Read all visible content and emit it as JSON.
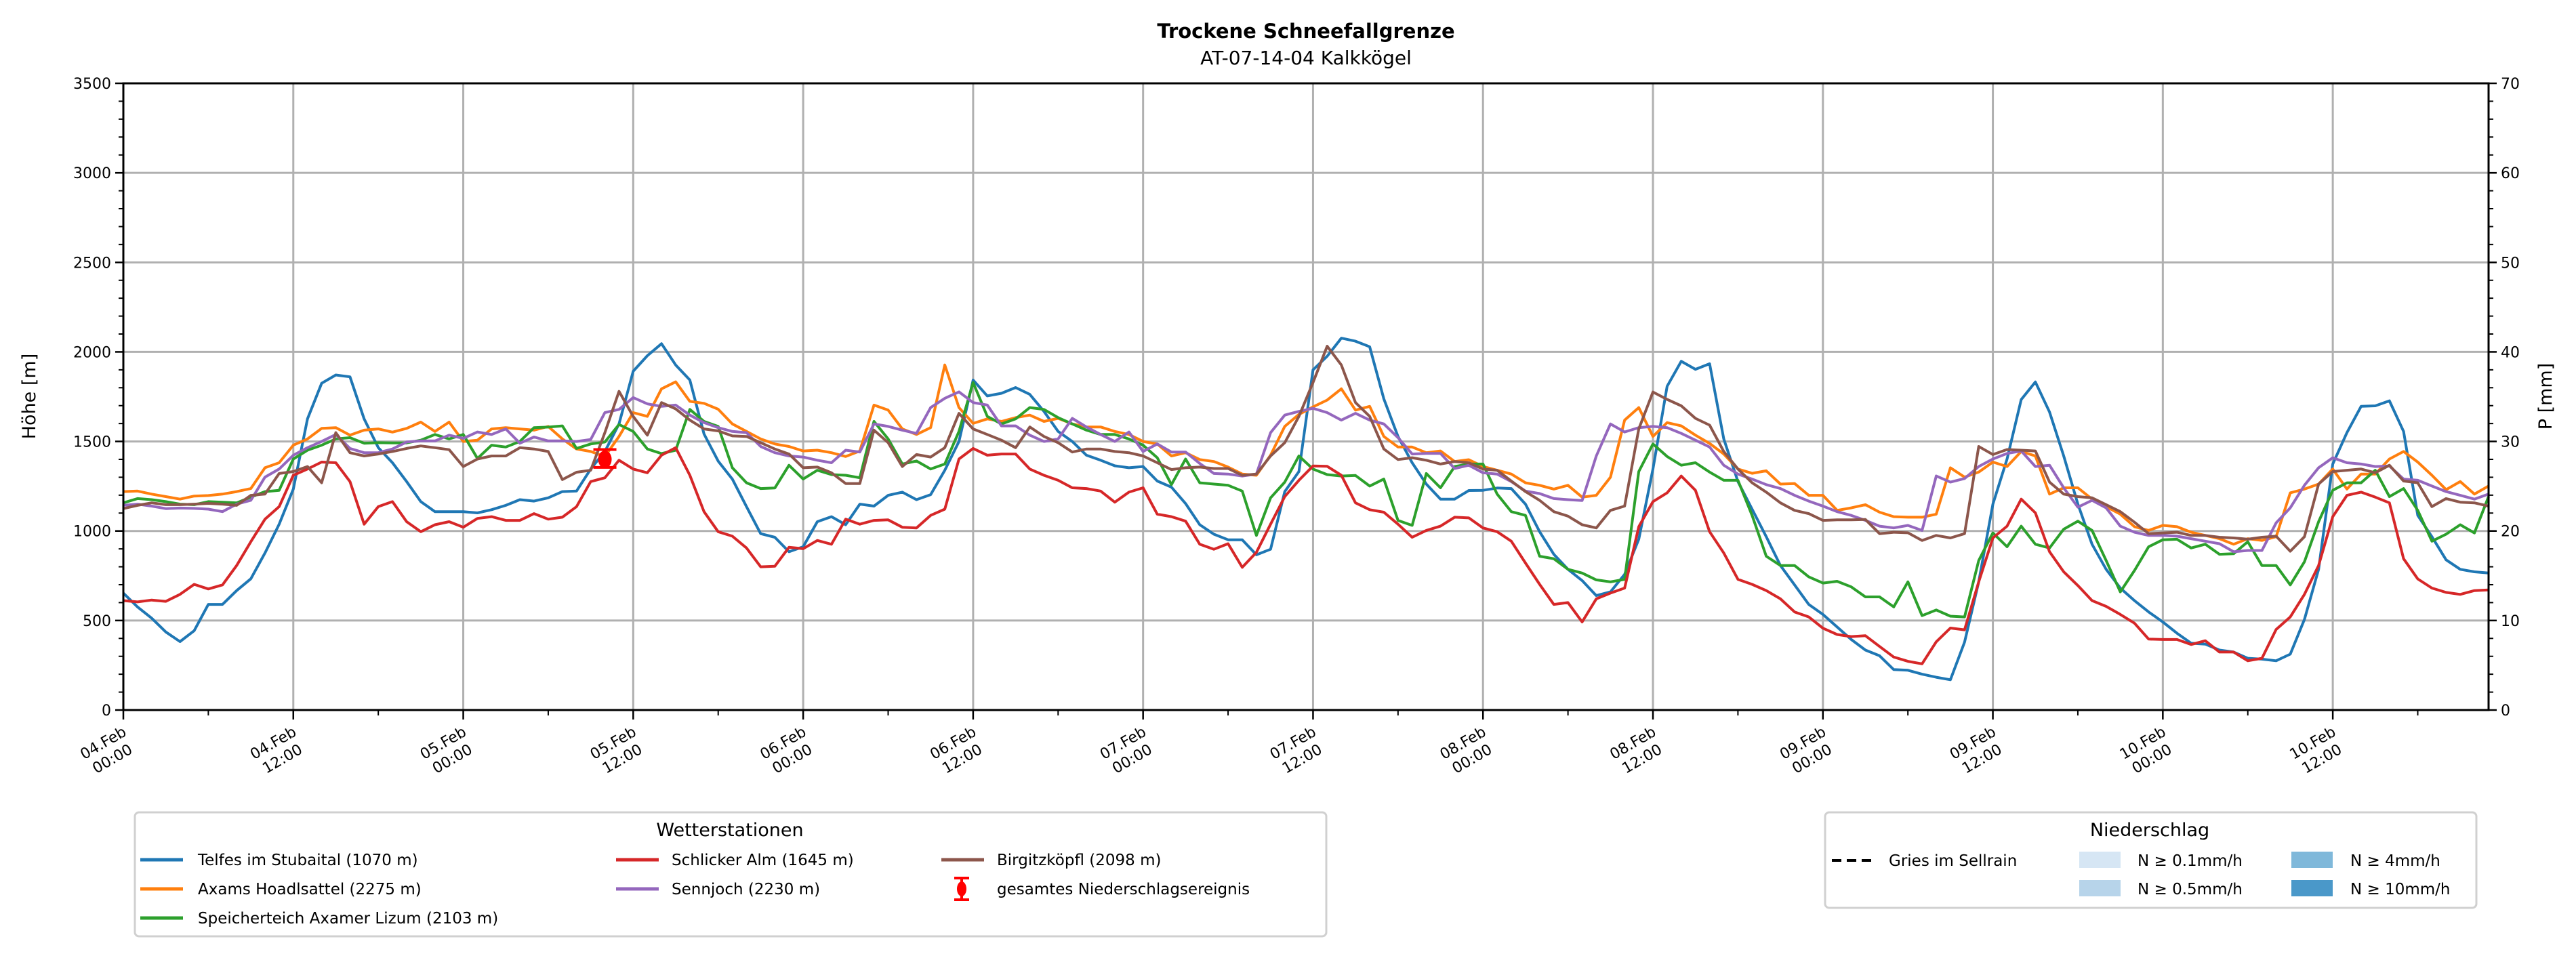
{
  "chart_data": {
    "type": "line",
    "title": "Trockene Schneefallgrenze",
    "subtitle": "AT-07-14-04 Kalkkögel",
    "xlabel": "",
    "ylabel": "Höhe [m]",
    "y2label": "P [mm]",
    "ylim": [
      0,
      3500
    ],
    "y2lim": [
      0,
      70
    ],
    "yticks": [
      "0",
      "500",
      "1000",
      "1500",
      "2000",
      "2500",
      "3000",
      "3500"
    ],
    "y2ticks": [
      "0",
      "10",
      "20",
      "30",
      "40",
      "50",
      "60",
      "70"
    ],
    "grid": true,
    "x_start": "04.Feb 00:00",
    "x_step_hours": 1,
    "xlim_hours": [
      0,
      167
    ],
    "xticks": [
      {
        "hour": 0,
        "date": "04.Feb",
        "time": "00:00"
      },
      {
        "hour": 12,
        "date": "04.Feb",
        "time": "12:00"
      },
      {
        "hour": 24,
        "date": "05.Feb",
        "time": "00:00"
      },
      {
        "hour": 36,
        "date": "05.Feb",
        "time": "12:00"
      },
      {
        "hour": 48,
        "date": "06.Feb",
        "time": "00:00"
      },
      {
        "hour": 60,
        "date": "06.Feb",
        "time": "12:00"
      },
      {
        "hour": 72,
        "date": "07.Feb",
        "time": "00:00"
      },
      {
        "hour": 84,
        "date": "07.Feb",
        "time": "12:00"
      },
      {
        "hour": 96,
        "date": "08.Feb",
        "time": "00:00"
      },
      {
        "hour": 108,
        "date": "08.Feb",
        "time": "12:00"
      },
      {
        "hour": 120,
        "date": "09.Feb",
        "time": "00:00"
      },
      {
        "hour": 132,
        "date": "09.Feb",
        "time": "12:00"
      },
      {
        "hour": 144,
        "date": "10.Feb",
        "time": "00:00"
      },
      {
        "hour": 156,
        "date": "10.Feb",
        "time": "12:00"
      }
    ],
    "series": [
      {
        "name": "Telfes im Stubaital (1070 m)",
        "color": "#1f77b4",
        "values": [
          653,
          576,
          513,
          436,
          382,
          443,
          590,
          590,
          667,
          733,
          877,
          1038,
          1234,
          1626,
          1825,
          1871,
          1861,
          1626,
          1465,
          1381,
          1276,
          1164,
          1108,
          1108,
          1108,
          1101,
          1119,
          1143,
          1175,
          1167,
          1185,
          1220,
          1223,
          1346,
          1444,
          1598,
          1892,
          1979,
          2046,
          1927,
          1843,
          1542,
          1390,
          1290,
          1136,
          985,
          965,
          884,
          912,
          1052,
          1080,
          1035,
          1150,
          1139,
          1199,
          1217,
          1175,
          1203,
          1339,
          1500,
          1843,
          1754,
          1769,
          1801,
          1763,
          1668,
          1556,
          1500,
          1423,
          1395,
          1364,
          1353,
          1360,
          1279,
          1245,
          1153,
          1035,
          982,
          951,
          951,
          867,
          898,
          1220,
          1332,
          1900,
          1976,
          2077,
          2060,
          2029,
          1738,
          1528,
          1381,
          1262,
          1178,
          1178,
          1226,
          1227,
          1240,
          1237,
          1150,
          996,
          870,
          786,
          723,
          639,
          660,
          758,
          954,
          1346,
          1808,
          1948,
          1903,
          1934,
          1514,
          1276,
          1122,
          968,
          807,
          699,
          590,
          534,
          464,
          394,
          335,
          303,
          226,
          222,
          200,
          183,
          169,
          379,
          716,
          1150,
          1402,
          1734,
          1832,
          1664,
          1419,
          1150,
          926,
          786,
          681,
          611,
          548,
          492,
          429,
          373,
          368,
          335,
          324,
          289,
          284,
          275,
          312,
          506,
          786,
          1374,
          1549,
          1696,
          1699,
          1727,
          1556,
          1087,
          968,
          839,
          786,
          772,
          765
        ]
      },
      {
        "name": "Axams Hoadlsattel (2275 m)",
        "color": "#ff7f0e",
        "values": [
          1220,
          1223,
          1206,
          1192,
          1178,
          1195,
          1198,
          1206,
          1220,
          1237,
          1353,
          1381,
          1479,
          1514,
          1573,
          1577,
          1535,
          1563,
          1570,
          1552,
          1573,
          1608,
          1556,
          1608,
          1500,
          1507,
          1570,
          1577,
          1570,
          1563,
          1584,
          1514,
          1458,
          1444,
          1416,
          1528,
          1661,
          1640,
          1794,
          1833,
          1724,
          1713,
          1680,
          1598,
          1556,
          1514,
          1486,
          1472,
          1447,
          1451,
          1437,
          1416,
          1447,
          1703,
          1675,
          1570,
          1539,
          1577,
          1927,
          1689,
          1601,
          1626,
          1612,
          1633,
          1647,
          1612,
          1629,
          1598,
          1581,
          1581,
          1556,
          1539,
          1500,
          1486,
          1419,
          1437,
          1399,
          1388,
          1357,
          1318,
          1311,
          1423,
          1584,
          1651,
          1693,
          1731,
          1794,
          1675,
          1696,
          1528,
          1469,
          1469,
          1437,
          1447,
          1388,
          1398,
          1360,
          1339,
          1318,
          1269,
          1255,
          1234,
          1255,
          1189,
          1199,
          1300,
          1619,
          1689,
          1528,
          1605,
          1587,
          1535,
          1489,
          1430,
          1346,
          1322,
          1336,
          1262,
          1265,
          1199,
          1199,
          1115,
          1129,
          1147,
          1105,
          1080,
          1077,
          1077,
          1094,
          1353,
          1301,
          1329,
          1385,
          1360,
          1444,
          1419,
          1206,
          1241,
          1241,
          1178,
          1136,
          1094,
          1024,
          1003,
          1031,
          1024,
          993,
          975,
          957,
          926,
          957,
          947,
          968,
          1213,
          1234,
          1262,
          1346,
          1234,
          1318,
          1318,
          1402,
          1444,
          1385,
          1311,
          1231,
          1276,
          1206,
          1251
        ]
      },
      {
        "name": "Speicherteich Axamer Lizum (2103 m)",
        "color": "#2ca02c",
        "values": [
          1157,
          1181,
          1175,
          1164,
          1150,
          1147,
          1164,
          1161,
          1157,
          1189,
          1220,
          1227,
          1402,
          1451,
          1479,
          1514,
          1521,
          1490,
          1493,
          1492,
          1492,
          1507,
          1539,
          1514,
          1539,
          1405,
          1479,
          1469,
          1500,
          1577,
          1580,
          1587,
          1461,
          1486,
          1497,
          1595,
          1556,
          1458,
          1432,
          1451,
          1679,
          1612,
          1584,
          1353,
          1269,
          1237,
          1240,
          1367,
          1290,
          1339,
          1315,
          1311,
          1297,
          1612,
          1514,
          1374,
          1391,
          1346,
          1374,
          1556,
          1829,
          1640,
          1598,
          1626,
          1689,
          1679,
          1633,
          1598,
          1563,
          1539,
          1539,
          1514,
          1479,
          1409,
          1259,
          1402,
          1269,
          1262,
          1255,
          1223,
          975,
          1185,
          1273,
          1419,
          1346,
          1315,
          1307,
          1310,
          1251,
          1290,
          1059,
          1031,
          1321,
          1241,
          1360,
          1374,
          1374,
          1206,
          1108,
          1087,
          859,
          845,
          786,
          765,
          727,
          716,
          730,
          1332,
          1486,
          1416,
          1367,
          1381,
          1329,
          1283,
          1283,
          1087,
          859,
          807,
          807,
          744,
          709,
          719,
          688,
          632,
          632,
          576,
          716,
          527,
          559,
          524,
          520,
          835,
          989,
          912,
          1027,
          926,
          905,
          1010,
          1055,
          1003,
          835,
          660,
          779,
          912,
          951,
          954,
          905,
          926,
          870,
          873,
          940,
          807,
          807,
          699,
          828,
          1052,
          1227,
          1269,
          1269,
          1339,
          1192,
          1237,
          1115,
          943,
          982,
          1035,
          989,
          1192
        ]
      },
      {
        "name": "Schlicker Alm (1645 m)",
        "color": "#d62728",
        "values": [
          611,
          604,
          614,
          607,
          646,
          702,
          676,
          699,
          807,
          940,
          1066,
          1136,
          1311,
          1346,
          1385,
          1381,
          1276,
          1038,
          1136,
          1164,
          1052,
          996,
          1035,
          1052,
          1021,
          1070,
          1080,
          1059,
          1059,
          1097,
          1066,
          1077,
          1136,
          1276,
          1297,
          1395,
          1346,
          1325,
          1423,
          1465,
          1311,
          1108,
          996,
          971,
          905,
          800,
          803,
          909,
          901,
          947,
          926,
          1066,
          1038,
          1059,
          1062,
          1021,
          1017,
          1087,
          1122,
          1402,
          1461,
          1423,
          1430,
          1430,
          1346,
          1311,
          1283,
          1241,
          1237,
          1223,
          1161,
          1217,
          1241,
          1094,
          1080,
          1055,
          926,
          898,
          929,
          797,
          881,
          1038,
          1192,
          1283,
          1363,
          1361,
          1311,
          1157,
          1119,
          1105,
          1038,
          965,
          1003,
          1027,
          1077,
          1073,
          1017,
          996,
          943,
          821,
          702,
          590,
          600,
          492,
          621,
          653,
          681,
          1024,
          1164,
          1213,
          1307,
          1227,
          996,
          877,
          730,
          702,
          667,
          621,
          548,
          520,
          457,
          422,
          410,
          415,
          355,
          296,
          272,
          258,
          381,
          458,
          448,
          716,
          961,
          1027,
          1178,
          1101,
          884,
          772,
          695,
          611,
          579,
          534,
          485,
          396,
          394,
          394,
          366,
          387,
          324,
          324,
          275,
          289,
          450,
          520,
          646,
          807,
          1080,
          1199,
          1217,
          1189,
          1157,
          845,
          732,
          681,
          657,
          646,
          667,
          671
        ]
      },
      {
        "name": "Sennjoch (2230 m)",
        "color": "#9467bd",
        "values": [
          1143,
          1150,
          1139,
          1125,
          1128,
          1126,
          1122,
          1108,
          1150,
          1171,
          1301,
          1346,
          1423,
          1465,
          1500,
          1539,
          1461,
          1437,
          1437,
          1458,
          1497,
          1503,
          1503,
          1535,
          1517,
          1553,
          1539,
          1570,
          1490,
          1525,
          1503,
          1503,
          1500,
          1511,
          1661,
          1679,
          1745,
          1710,
          1696,
          1703,
          1647,
          1605,
          1577,
          1556,
          1549,
          1472,
          1437,
          1419,
          1413,
          1395,
          1381,
          1451,
          1441,
          1598,
          1584,
          1563,
          1545,
          1689,
          1741,
          1777,
          1717,
          1703,
          1587,
          1587,
          1535,
          1500,
          1514,
          1629,
          1581,
          1539,
          1500,
          1553,
          1444,
          1486,
          1441,
          1441,
          1377,
          1321,
          1318,
          1307,
          1318,
          1549,
          1647,
          1668,
          1685,
          1661,
          1619,
          1657,
          1619,
          1598,
          1521,
          1430,
          1433,
          1433,
          1349,
          1367,
          1325,
          1318,
          1276,
          1223,
          1209,
          1181,
          1175,
          1170,
          1419,
          1598,
          1553,
          1577,
          1584,
          1577,
          1545,
          1507,
          1469,
          1367,
          1318,
          1290,
          1259,
          1237,
          1199,
          1167,
          1139,
          1108,
          1087,
          1059,
          1027,
          1017,
          1031,
          1003,
          1307,
          1273,
          1293,
          1360,
          1402,
          1433,
          1447,
          1360,
          1367,
          1241,
          1133,
          1171,
          1129,
          1027,
          993,
          975,
          975,
          971,
          957,
          943,
          929,
          884,
          891,
          891,
          1045,
          1129,
          1255,
          1353,
          1409,
          1381,
          1374,
          1360,
          1363,
          1290,
          1283,
          1251,
          1220,
          1199,
          1178,
          1206
        ]
      },
      {
        "name": "Birgitzköpfl (2098 m)",
        "color": "#8c564b",
        "values": [
          1125,
          1143,
          1157,
          1147,
          1147,
          1150,
          1154,
          1150,
          1143,
          1199,
          1206,
          1321,
          1332,
          1360,
          1269,
          1549,
          1437,
          1419,
          1430,
          1444,
          1461,
          1475,
          1465,
          1454,
          1360,
          1402,
          1419,
          1419,
          1465,
          1458,
          1444,
          1287,
          1328,
          1339,
          1549,
          1780,
          1640,
          1535,
          1717,
          1682,
          1619,
          1570,
          1559,
          1531,
          1528,
          1493,
          1458,
          1430,
          1353,
          1357,
          1325,
          1265,
          1265,
          1563,
          1493,
          1360,
          1427,
          1413,
          1465,
          1657,
          1570,
          1539,
          1507,
          1465,
          1581,
          1528,
          1493,
          1441,
          1458,
          1458,
          1444,
          1437,
          1419,
          1381,
          1343,
          1353,
          1357,
          1349,
          1349,
          1311,
          1318,
          1419,
          1493,
          1640,
          1829,
          2032,
          1927,
          1717,
          1640,
          1458,
          1399,
          1409,
          1395,
          1374,
          1388,
          1381,
          1346,
          1339,
          1279,
          1220,
          1171,
          1108,
          1083,
          1035,
          1017,
          1115,
          1139,
          1570,
          1776,
          1735,
          1699,
          1629,
          1591,
          1444,
          1346,
          1269,
          1217,
          1157,
          1115,
          1097,
          1059,
          1062,
          1062,
          1064,
          985,
          993,
          990,
          947,
          975,
          961,
          985,
          1472,
          1427,
          1455,
          1451,
          1447,
          1273,
          1206,
          1192,
          1185,
          1147,
          1108,
          1049,
          985,
          989,
          993,
          975,
          975,
          965,
          961,
          954,
          965,
          971,
          887,
          968,
          1262,
          1332,
          1339,
          1346,
          1325,
          1367,
          1279,
          1269,
          1136,
          1181,
          1161,
          1157,
          1139
        ]
      }
    ],
    "precip_event": {
      "hour": 34,
      "value": 1400,
      "low": 1355,
      "high": 1455,
      "color": "#ff0000",
      "label": "gesamtes Niederschlagsereignis"
    },
    "legend_stations": {
      "title": "Wetterstationen",
      "position": "bottom-left"
    },
    "legend_precip": {
      "title": "Niederschlag",
      "position": "bottom-right",
      "line_label": "Gries im Sellrain",
      "classes": [
        {
          "label": "N ≥ 0.1mm/h",
          "color": "#d6e6f4"
        },
        {
          "label": "N ≥ 0.5mm/h",
          "color": "#b7d4ea"
        },
        {
          "label": "N ≥ 4mm/h",
          "color": "#7fb8da"
        },
        {
          "label": "N ≥ 10mm/h",
          "color": "#4a98c9"
        }
      ]
    }
  }
}
